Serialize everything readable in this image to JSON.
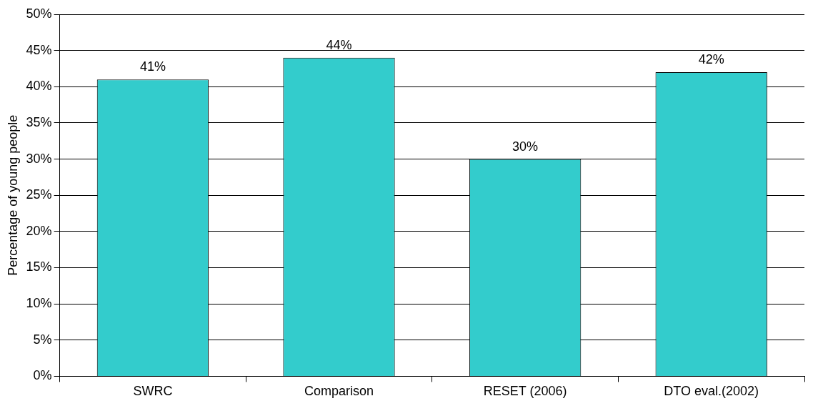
{
  "chart_data": {
    "type": "bar",
    "ylabel": "Percentage of young people",
    "categories": [
      "SWRC",
      "Comparison",
      "RESET (2006)",
      "DTO eval.(2002)"
    ],
    "values": [
      41,
      44,
      30,
      42
    ],
    "color": "#33cccc",
    "value_labels": [
      "41%",
      "44%",
      "30%",
      "42%"
    ],
    "ylim": [
      0,
      50
    ],
    "yticks": [
      {
        "value": 0,
        "label": "0%"
      },
      {
        "value": 5,
        "label": "5%"
      },
      {
        "value": 10,
        "label": "10%"
      },
      {
        "value": 15,
        "label": "15%"
      },
      {
        "value": 20,
        "label": "20%"
      },
      {
        "value": 25,
        "label": "25%"
      },
      {
        "value": 30,
        "label": "30%"
      },
      {
        "value": 35,
        "label": "35%"
      },
      {
        "value": 40,
        "label": "40%"
      },
      {
        "value": 45,
        "label": "45%"
      },
      {
        "value": 50,
        "label": "50%"
      }
    ],
    "grid": "y"
  }
}
